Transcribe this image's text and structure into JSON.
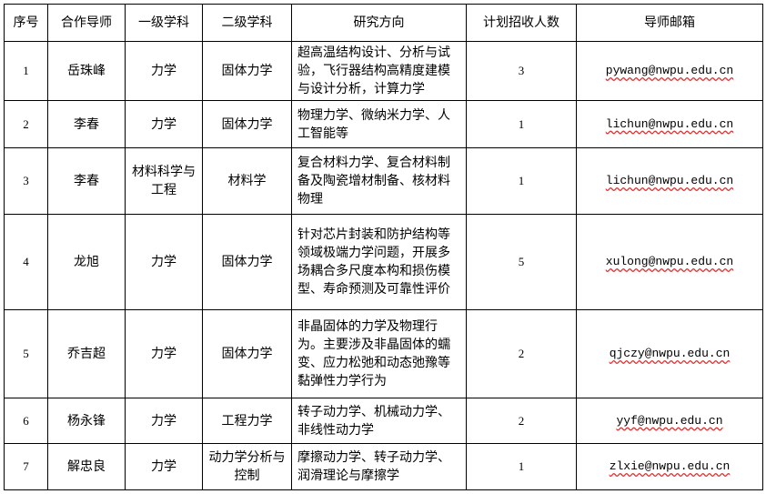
{
  "table": {
    "header": [
      "序号",
      "合作导师",
      "一级学科",
      "二级学科",
      "研究方向",
      "计划招收人数",
      "导师邮箱"
    ],
    "rows": [
      [
        1,
        "岳珠峰",
        "力学",
        "固体力学",
        "超高温结构设计、分析与试验，飞行器结构高精度建模与设计分析，计算力学",
        3,
        "pywang@nwpu.edu.cn"
      ],
      [
        2,
        "李春",
        "力学",
        "固体力学",
        "物理力学、微纳米力学、人工智能等",
        1,
        "lichun@nwpu.edu.cn"
      ],
      [
        3,
        "李春",
        "材料科学与工程",
        "材料学",
        "复合材料力学、复合材料制备及陶瓷增材制备、核材料物理",
        1,
        "lichun@nwpu.edu.cn"
      ],
      [
        4,
        "龙旭",
        "力学",
        "固体力学",
        "针对芯片封装和防护结构等领域极端力学问题，开展多场耦合多尺度本构和损伤模型、寿命预测及可靠性评价",
        5,
        "xulong@nwpu.edu.cn"
      ],
      [
        5,
        "乔吉超",
        "力学",
        "固体力学",
        "非晶固体的力学及物理行为。主要涉及非晶固体的蠕变、应力松弛和动态弛豫等黏弹性力学行为",
        2,
        "qjczy@nwpu.edu.cn"
      ],
      [
        6,
        "杨永锋",
        "力学",
        "工程力学",
        "转子动力学、机械动力学、非线性动力学",
        2,
        "yyf@nwpu.edu.cn"
      ],
      [
        7,
        "解忠良",
        "力学",
        "动力学分析与控制",
        "摩擦动力学、转子动力学、润滑理论与摩擦学",
        1,
        "zlxie@nwpu.edu.cn"
      ]
    ]
  }
}
